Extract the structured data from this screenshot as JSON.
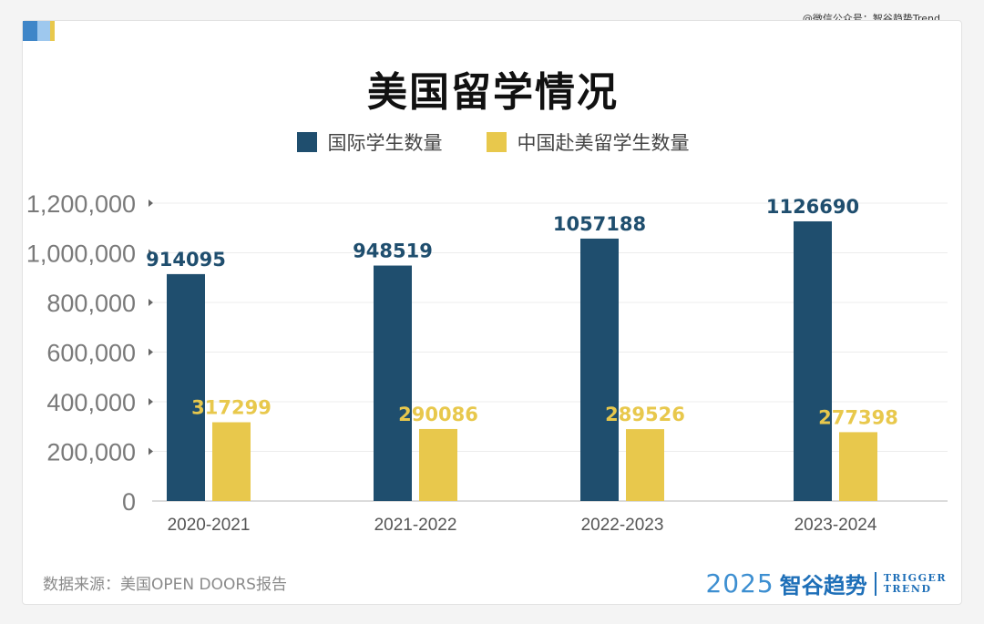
{
  "watermark": "@微信公众号：智谷趋势Trend",
  "title": "美国留学情况",
  "source": "数据来源：美国OPEN DOORS报告",
  "brand": {
    "year": "2025",
    "name": "智谷趋势",
    "en_line1": "TRIGGER",
    "en_line2": "TREND"
  },
  "colors": {
    "international": "#1f4e6e",
    "china": "#e8c84c",
    "brand_blue": "#1e6fb8"
  },
  "chart_data": {
    "type": "bar",
    "title": "美国留学情况",
    "categories": [
      "2020-2021",
      "2021-2022",
      "2022-2023",
      "2023-2024"
    ],
    "series": [
      {
        "name": "国际学生数量",
        "values": [
          914095,
          948519,
          1057188,
          1126690
        ],
        "labels": [
          "914095",
          "948519",
          "1057188",
          "1126690"
        ]
      },
      {
        "name": "中国赴美留学生数量",
        "values": [
          317299,
          290086,
          289526,
          277398
        ],
        "labels": [
          "317299",
          "290086",
          "289526",
          "277398"
        ]
      }
    ],
    "ylim": [
      0,
      1200000
    ],
    "y_ticks": [
      "0",
      "200,000",
      "400,000",
      "600,000",
      "800,000",
      "1,000,000",
      "1,200,000"
    ],
    "grid": true,
    "legend": "top-center"
  }
}
